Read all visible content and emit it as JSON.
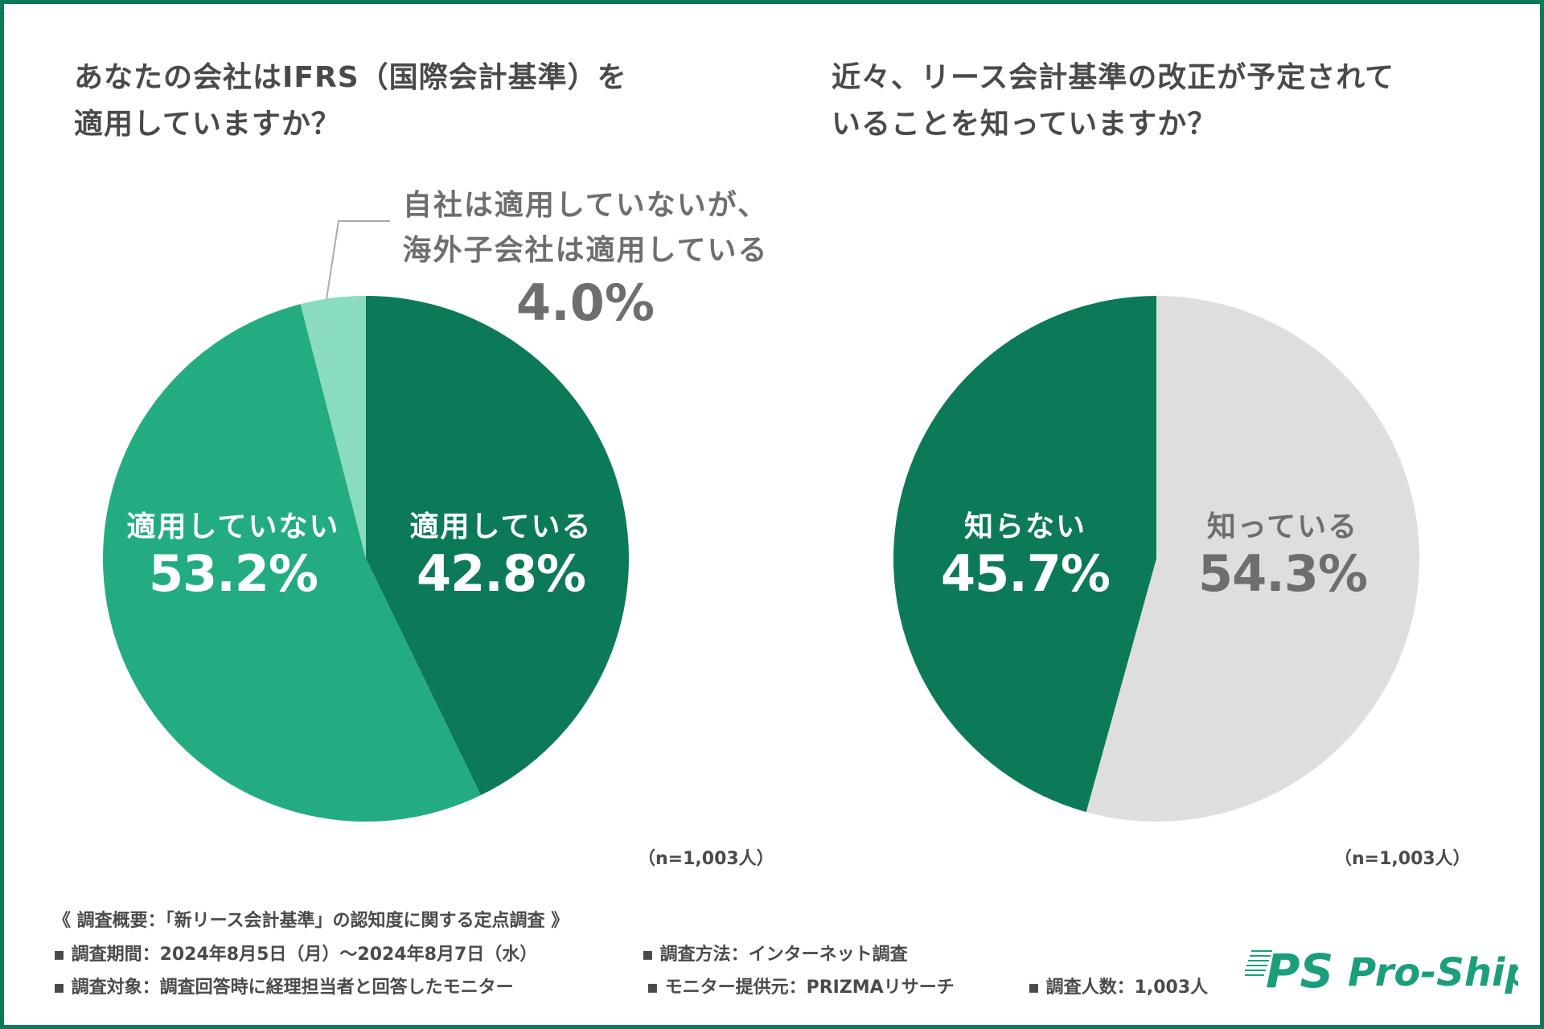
{
  "colors": {
    "frame": "#0c7a59",
    "dark_green": "#0c7a59",
    "mid_green": "#23ac82",
    "light_green": "#8adcc0",
    "light_grey": "#dedede",
    "text": "#4a4a4a",
    "label_grey": "#6e6e6e",
    "logo": "#1a9e7c"
  },
  "chart_data": [
    {
      "type": "pie",
      "title": "あなたの会社はIFRS（国際会計基準）を適用していますか？",
      "title_lines": [
        "あなたの会社はIFRS（国際会計基準）を",
        "適用していますか？"
      ],
      "categories": [
        "適用している",
        "適用していない",
        "自社は適用していないが、海外子会社は適用している"
      ],
      "values": [
        42.8,
        53.2,
        4.0
      ],
      "value_labels": [
        "42.8%",
        "53.2%",
        "4.0%"
      ],
      "callout_lines": [
        "自社は適用していないが、",
        "海外子会社は適用している"
      ],
      "colors": [
        "#0c7a59",
        "#23ac82",
        "#8adcc0"
      ],
      "start": "12 o'clock, clockwise",
      "sample": "（n=1,003人）"
    },
    {
      "type": "pie",
      "title": "近々、リース会計基準の改正が予定されていることを知っていますか？",
      "title_lines": [
        "近々、リース会計基準の改正が予定されて",
        "いることを知っていますか？"
      ],
      "categories": [
        "知っている",
        "知らない"
      ],
      "values": [
        54.3,
        45.7
      ],
      "value_labels": [
        "54.3%",
        "45.7%"
      ],
      "colors": [
        "#dedede",
        "#0c7a59"
      ],
      "start": "12 o'clock, clockwise",
      "sample": "（n=1,003人）"
    }
  ],
  "footer": {
    "heading": "《 調査概要：「新リース会計基準」の認知度に関する定点調査 》",
    "period": "▪ 調査期間：2024年8月5日（月）～2024年8月7日（水）",
    "method": "▪ 調査方法：インターネット調査",
    "target": "▪ 調査対象：調査回答時に経理担当者と回答したモニター",
    "provider": "▪ モニター提供元：PRIZMAリサーチ",
    "count": "▪ 調査人数：1,003人"
  },
  "logo": {
    "mark": "PS",
    "text": "Pro-Ship"
  }
}
